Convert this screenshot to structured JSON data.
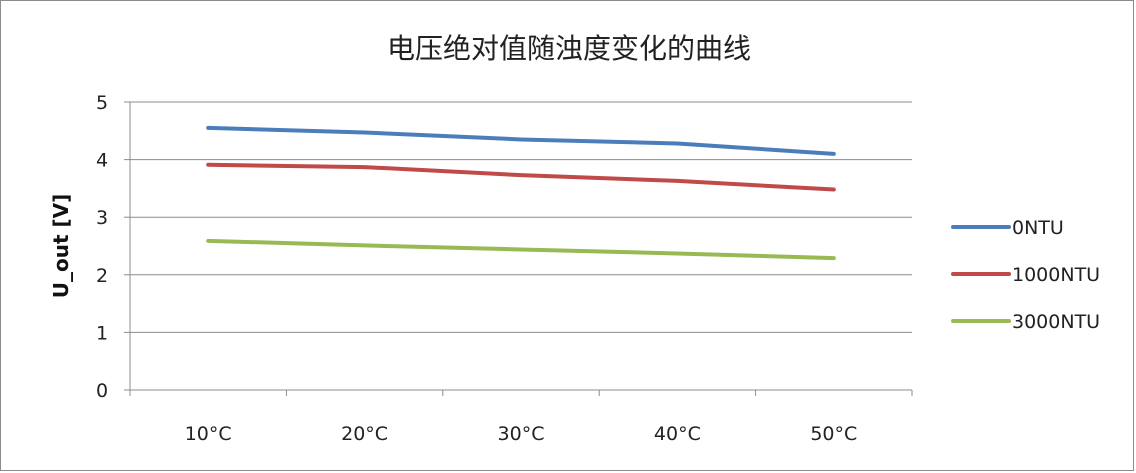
{
  "chart_data": {
    "type": "line",
    "title": "电压绝对值随浊度变化的曲线",
    "xlabel": "",
    "ylabel": "U_out [V]",
    "categories": [
      "10°C",
      "20°C",
      "30°C",
      "40°C",
      "50°C"
    ],
    "ylim": [
      0,
      5
    ],
    "yticks": [
      "0",
      "1",
      "2",
      "3",
      "4",
      "5"
    ],
    "grid": true,
    "legend": "right",
    "series": [
      {
        "name": "0NTU",
        "color": "#4a7ebb",
        "values": [
          4.55,
          4.47,
          4.35,
          4.28,
          4.1
        ]
      },
      {
        "name": "1000NTU",
        "color": "#be4b48",
        "values": [
          3.91,
          3.87,
          3.73,
          3.63,
          3.48
        ]
      },
      {
        "name": "3000NTU",
        "color": "#98b954",
        "values": [
          2.59,
          2.51,
          2.44,
          2.37,
          2.29
        ]
      }
    ]
  }
}
